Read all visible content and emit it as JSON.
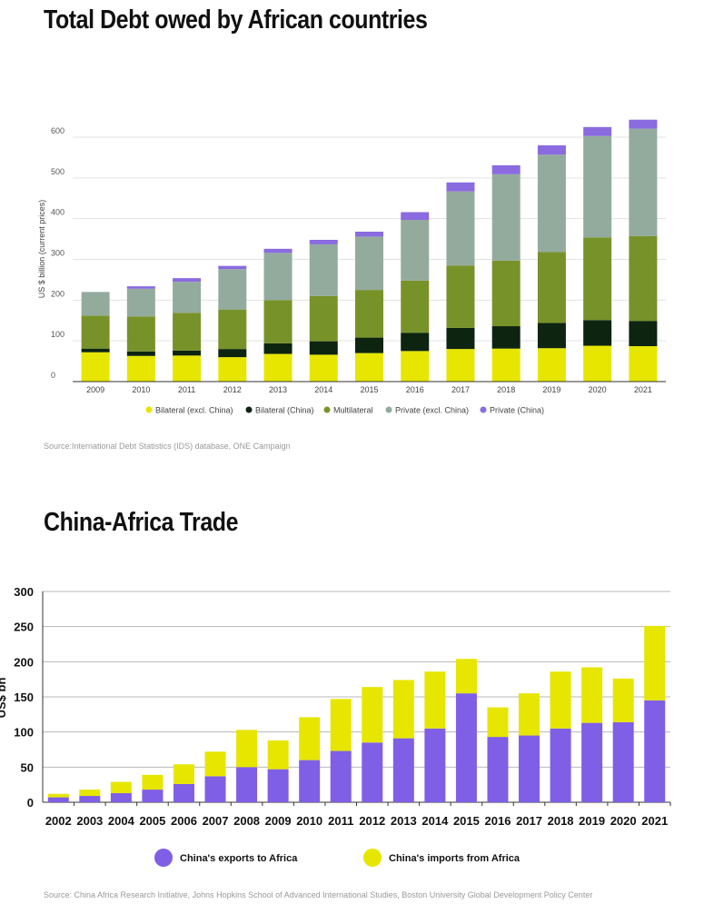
{
  "chart_data": [
    {
      "type": "bar",
      "stacked": true,
      "title": "Total Debt owed by African countries",
      "ylabel": "US $ billion (current prices)",
      "xlabel": "",
      "ylim": [
        0,
        600
      ],
      "yticks": [
        0,
        100,
        200,
        300,
        400,
        500,
        600
      ],
      "categories": [
        "2009",
        "2010",
        "2011",
        "2012",
        "2013",
        "2014",
        "2015",
        "2016",
        "2017",
        "2018",
        "2019",
        "2020",
        "2021"
      ],
      "series": [
        {
          "name": "Bilateral (excl. China)",
          "color": "#e6e600",
          "values": [
            72,
            63,
            64,
            60,
            68,
            66,
            70,
            75,
            80,
            81,
            82,
            88,
            87
          ]
        },
        {
          "name": "Bilateral (China)",
          "color": "#0d2410",
          "values": [
            9,
            11,
            12,
            20,
            26,
            33,
            38,
            45,
            52,
            55,
            62,
            63,
            62
          ]
        },
        {
          "name": "Multilateral",
          "color": "#78922a",
          "values": [
            81,
            86,
            93,
            97,
            106,
            111,
            117,
            128,
            153,
            161,
            174,
            203,
            208
          ]
        },
        {
          "name": "Private (excl. China)",
          "color": "#93ab9d",
          "values": [
            58,
            68,
            76,
            99,
            116,
            127,
            131,
            149,
            182,
            212,
            239,
            249,
            264
          ]
        },
        {
          "name": "Private (China)",
          "color": "#8a6be0",
          "values": [
            0,
            6,
            9,
            8,
            10,
            11,
            12,
            19,
            22,
            22,
            23,
            22,
            22
          ]
        }
      ],
      "legend_position": "bottom",
      "source": "Source:International Debt Statistics (IDS) database, ONE Campaign"
    },
    {
      "type": "bar",
      "stacked": true,
      "title": "China-Africa Trade",
      "ylabel": "US$ bn",
      "xlabel": "",
      "ylim": [
        0,
        300
      ],
      "yticks": [
        0,
        50,
        100,
        150,
        200,
        250,
        300
      ],
      "categories": [
        "2002",
        "2003",
        "2004",
        "2005",
        "2006",
        "2007",
        "2008",
        "2009",
        "2010",
        "2011",
        "2012",
        "2013",
        "2014",
        "2015",
        "2016",
        "2017",
        "2018",
        "2019",
        "2020",
        "2021"
      ],
      "series": [
        {
          "name": "China's exports to Africa",
          "color": "#7f5fe6",
          "values": [
            7,
            9,
            13,
            18,
            26,
            37,
            50,
            47,
            60,
            73,
            85,
            91,
            105,
            155,
            93,
            95,
            105,
            113,
            114,
            145
          ]
        },
        {
          "name": "China's imports from Africa",
          "color": "#e6e600",
          "values": [
            5,
            9,
            16,
            21,
            28,
            35,
            53,
            41,
            61,
            74,
            79,
            83,
            81,
            49,
            42,
            60,
            81,
            79,
            62,
            106
          ]
        }
      ],
      "legend_position": "bottom",
      "source": "Source: China Africa Research Initiative, Johns Hopkins School of Advanced International Studies, Boston University Global Development Policy Center"
    }
  ]
}
